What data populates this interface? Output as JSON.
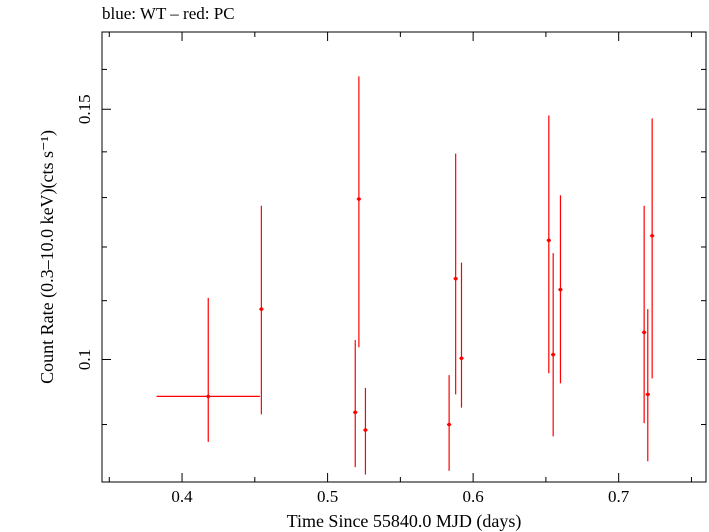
{
  "chart_data": {
    "type": "scatter",
    "title": "blue: WT – red: PC",
    "xlabel": "Time Since 55840.0 MJD (days)",
    "ylabel": "Count Rate (0.3–10.0 keV)(cts s⁻¹)",
    "xlim": [
      0.345,
      0.76
    ],
    "ylim": [
      0.082,
      0.17
    ],
    "xticks": [
      {
        "value": 0.4,
        "label": "0.4"
      },
      {
        "value": 0.5,
        "label": "0.5"
      },
      {
        "value": 0.6,
        "label": "0.6"
      },
      {
        "value": 0.7,
        "label": "0.7"
      }
    ],
    "yticks": [
      {
        "value": 0.1,
        "label": "0.1"
      },
      {
        "value": 0.15,
        "label": "0.15"
      }
    ],
    "grid": false,
    "legend": "none",
    "series": [
      {
        "name": "PC",
        "color": "#ff0000",
        "points": [
          {
            "x": 0.418,
            "y": 0.0942,
            "xerr": [
              0.0355,
              0.0355
            ],
            "ylo": 0.0875,
            "yhi": 0.1105
          },
          {
            "x": 0.4545,
            "y": 0.1085,
            "xerr": [
              0.0015,
              0.0015
            ],
            "ylo": 0.0915,
            "yhi": 0.1283
          },
          {
            "x": 0.519,
            "y": 0.0918,
            "xerr": [
              0.0015,
              0.0015
            ],
            "ylo": 0.084,
            "yhi": 0.1032
          },
          {
            "x": 0.5215,
            "y": 0.1297,
            "xerr": [
              0.0015,
              0.0015
            ],
            "ylo": 0.102,
            "yhi": 0.1582
          },
          {
            "x": 0.526,
            "y": 0.0892,
            "xerr": [
              0.0015,
              0.0015
            ],
            "ylo": 0.083,
            "yhi": 0.0955
          },
          {
            "x": 0.5835,
            "y": 0.09,
            "xerr": [
              0.0015,
              0.0015
            ],
            "ylo": 0.0835,
            "yhi": 0.0975
          },
          {
            "x": 0.588,
            "y": 0.114,
            "xerr": [
              0.0015,
              0.0015
            ],
            "ylo": 0.0945,
            "yhi": 0.1396
          },
          {
            "x": 0.592,
            "y": 0.1002,
            "xerr": [
              0.0015,
              0.0015
            ],
            "ylo": 0.0925,
            "yhi": 0.117
          },
          {
            "x": 0.652,
            "y": 0.1213,
            "xerr": [
              0.0015,
              0.0015
            ],
            "ylo": 0.0978,
            "yhi": 0.1485
          },
          {
            "x": 0.655,
            "y": 0.1008,
            "xerr": [
              0.0015,
              0.0015
            ],
            "ylo": 0.0883,
            "yhi": 0.1188
          },
          {
            "x": 0.66,
            "y": 0.112,
            "xerr": [
              0.0015,
              0.0015
            ],
            "ylo": 0.0962,
            "yhi": 0.1305
          },
          {
            "x": 0.7175,
            "y": 0.1045,
            "xerr": [
              0.0015,
              0.0015
            ],
            "ylo": 0.0902,
            "yhi": 0.1283
          },
          {
            "x": 0.72,
            "y": 0.0945,
            "xerr": [
              0.0015,
              0.0015
            ],
            "ylo": 0.0848,
            "yhi": 0.1085
          },
          {
            "x": 0.723,
            "y": 0.1222,
            "xerr": [
              0.0015,
              0.0015
            ],
            "ylo": 0.097,
            "yhi": 0.1478
          }
        ]
      }
    ]
  }
}
